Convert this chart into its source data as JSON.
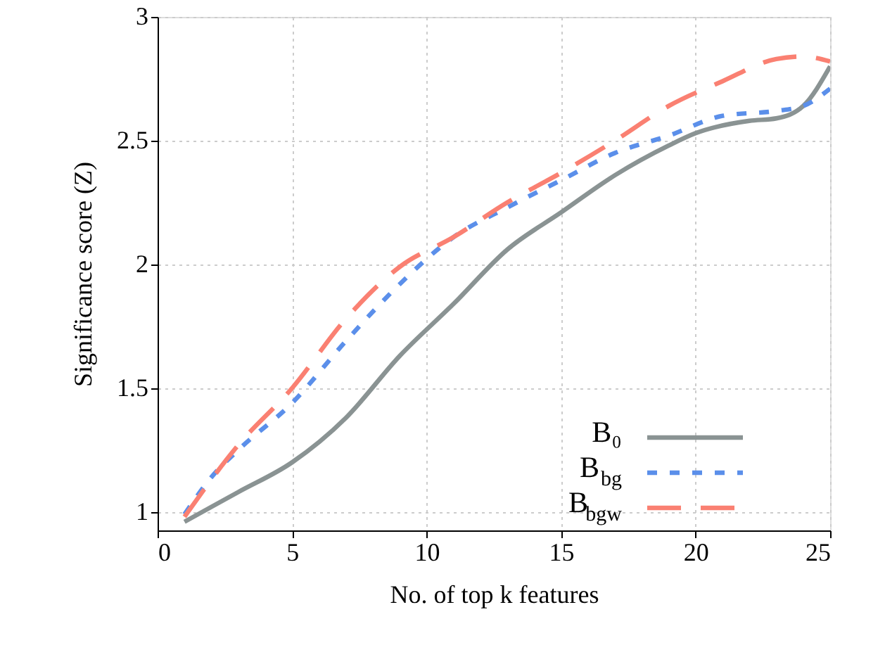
{
  "chart_data": {
    "type": "line",
    "xlabel": "No. of top k features",
    "ylabel": "Significance score (Z)",
    "xlim": [
      0,
      25
    ],
    "ylim": [
      0.925,
      3
    ],
    "xticks": [
      0,
      5,
      10,
      15,
      20,
      25
    ],
    "yticks": [
      1,
      {
        "value": 1.5,
        "label": "1.5"
      },
      2,
      {
        "value": 2.5,
        "label": "2.5"
      },
      3
    ],
    "grid": true,
    "legend": "bottom right",
    "marker": "none",
    "series": [
      {
        "name": "B₀",
        "color": "#8a9393",
        "line_style": "solid",
        "x": [
          1,
          3,
          5,
          7,
          9,
          11,
          13,
          15,
          17,
          19,
          20,
          22,
          23,
          24,
          25
        ],
        "values": [
          0.96,
          1.08,
          1.2,
          1.38,
          1.63,
          1.84,
          2.06,
          2.21,
          2.36,
          2.48,
          2.53,
          2.58,
          2.59,
          2.64,
          2.8
        ]
      },
      {
        "name": "B$_{bg}$",
        "color": "#5b8fea",
        "line_style": "dotted",
        "x": [
          1,
          2,
          3,
          5,
          7,
          9,
          11,
          13,
          15,
          17,
          19,
          21,
          23,
          24,
          25
        ],
        "values": [
          0.99,
          1.14,
          1.25,
          1.44,
          1.69,
          1.92,
          2.11,
          2.23,
          2.34,
          2.45,
          2.52,
          2.6,
          2.62,
          2.64,
          2.71
        ]
      },
      {
        "name": "B$_{bgw}$",
        "color": "#fa8072",
        "line_style": "dashed",
        "x": [
          1,
          3,
          5,
          7,
          9,
          11,
          13,
          15,
          17,
          19,
          21,
          23,
          24,
          25
        ],
        "values": [
          0.98,
          1.27,
          1.5,
          1.78,
          1.99,
          2.11,
          2.25,
          2.37,
          2.5,
          2.64,
          2.74,
          2.83,
          2.84,
          2.82
        ]
      }
    ]
  }
}
